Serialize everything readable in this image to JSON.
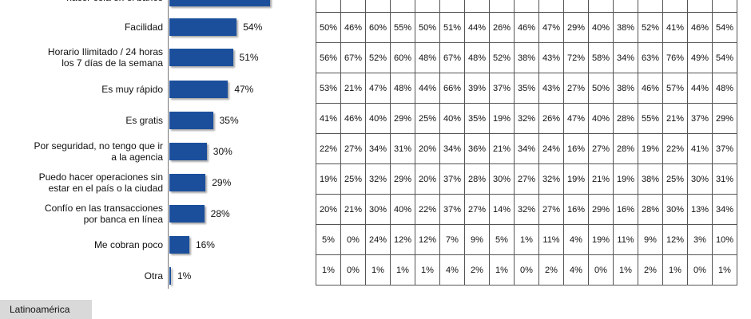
{
  "chart_data": {
    "type": "bar",
    "orientation": "horizontal",
    "categories": [
      "hacer cola en el banco",
      "Facilidad",
      "Horario Ilimitado / 24 horas los 7 días de la semana",
      "Es muy rápido",
      "Es gratis",
      "Por seguridad, no tengo que ir a la agencia",
      "Puedo hacer operaciones sin estar en el país o la ciudad",
      "Confío en las transacciones por banca en línea",
      "Me cobran poco",
      "Otra"
    ],
    "category_lines": [
      [
        "hacer cola en el banco"
      ],
      [
        "Facilidad"
      ],
      [
        "Horario Ilimitado / 24 horas",
        "los 7 días de la semana"
      ],
      [
        "Es muy rápido"
      ],
      [
        "Es gratis"
      ],
      [
        "Por seguridad, no tengo que ir",
        "a la agencia"
      ],
      [
        "Puedo hacer operaciones sin",
        "estar en el país o la ciudad"
      ],
      [
        "Confío en las transacciones",
        "por banca en línea"
      ],
      [
        "Me cobran poco"
      ],
      [
        "Otra"
      ]
    ],
    "values": [
      null,
      54,
      51,
      47,
      35,
      30,
      29,
      28,
      16,
      1
    ],
    "value_labels": [
      "",
      "54%",
      "51%",
      "47%",
      "35%",
      "30%",
      "29%",
      "28%",
      "16%",
      "1%"
    ],
    "unit": "%",
    "table": [
      [
        "",
        "",
        "",
        "",
        "",
        "",
        "",
        "",
        "",
        "",
        "",
        "",
        "",
        "",
        "",
        "",
        ""
      ],
      [
        "50%",
        "46%",
        "60%",
        "55%",
        "50%",
        "51%",
        "44%",
        "26%",
        "46%",
        "47%",
        "29%",
        "40%",
        "38%",
        "52%",
        "41%",
        "46%",
        "54%"
      ],
      [
        "56%",
        "67%",
        "52%",
        "60%",
        "48%",
        "67%",
        "48%",
        "52%",
        "38%",
        "43%",
        "72%",
        "58%",
        "34%",
        "63%",
        "76%",
        "49%",
        "54%"
      ],
      [
        "53%",
        "21%",
        "47%",
        "48%",
        "44%",
        "66%",
        "39%",
        "37%",
        "35%",
        "43%",
        "27%",
        "50%",
        "38%",
        "46%",
        "57%",
        "44%",
        "48%"
      ],
      [
        "41%",
        "46%",
        "40%",
        "29%",
        "25%",
        "40%",
        "35%",
        "19%",
        "32%",
        "26%",
        "47%",
        "40%",
        "28%",
        "55%",
        "21%",
        "37%",
        "29%"
      ],
      [
        "22%",
        "27%",
        "34%",
        "31%",
        "20%",
        "34%",
        "36%",
        "21%",
        "34%",
        "24%",
        "16%",
        "27%",
        "28%",
        "19%",
        "22%",
        "41%",
        "37%"
      ],
      [
        "19%",
        "25%",
        "32%",
        "29%",
        "20%",
        "37%",
        "28%",
        "30%",
        "27%",
        "32%",
        "19%",
        "21%",
        "19%",
        "38%",
        "25%",
        "30%",
        "31%"
      ],
      [
        "20%",
        "21%",
        "30%",
        "40%",
        "22%",
        "37%",
        "27%",
        "14%",
        "32%",
        "27%",
        "16%",
        "29%",
        "16%",
        "28%",
        "30%",
        "13%",
        "34%"
      ],
      [
        "5%",
        "0%",
        "24%",
        "12%",
        "12%",
        "7%",
        "9%",
        "5%",
        "1%",
        "11%",
        "4%",
        "19%",
        "11%",
        "9%",
        "12%",
        "3%",
        "10%"
      ],
      [
        "1%",
        "0%",
        "1%",
        "1%",
        "1%",
        "4%",
        "2%",
        "1%",
        "0%",
        "2%",
        "4%",
        "0%",
        "1%",
        "2%",
        "1%",
        "0%",
        "1%"
      ]
    ],
    "bar_color": "#1b4f9c"
  },
  "footer": {
    "region_label": "Latinoamérica"
  }
}
